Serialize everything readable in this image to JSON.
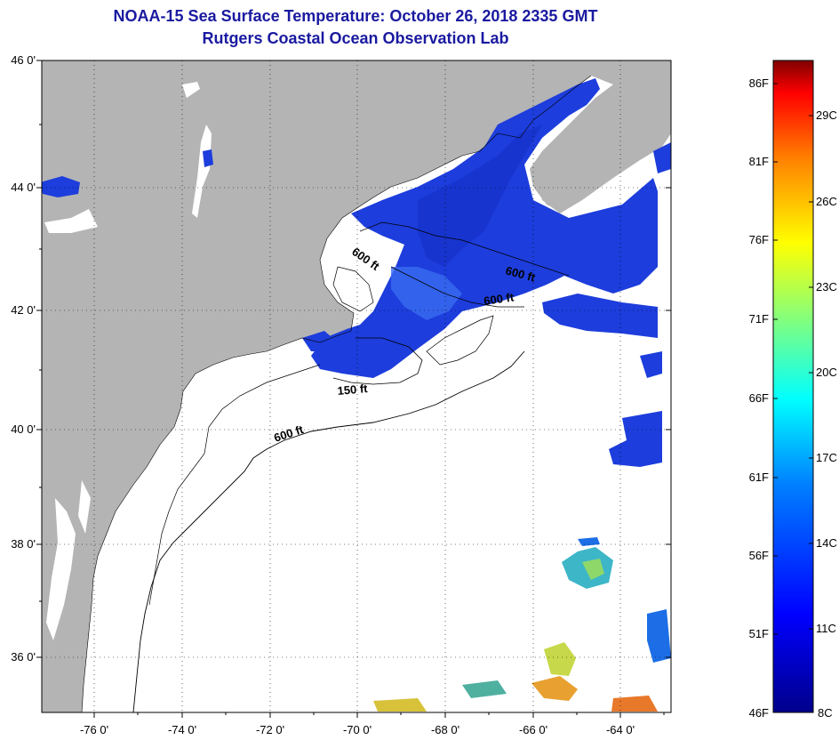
{
  "title": "NOAA-15 Sea Surface Temperature:  October 26, 2018 2335 GMT",
  "subtitle": "Rutgers Coastal Ocean Observation Lab",
  "colors": {
    "land": "#b4b4b4",
    "ocean": "#ffffff",
    "title": "#1a1aa0",
    "sst_cool": "#1f3fe0"
  },
  "axes": {
    "lat_ticks": [
      "46 0'",
      "44 0'",
      "42 0'",
      "40 0'",
      "38 0'",
      "36 0'"
    ],
    "lon_ticks": [
      "-76 0'",
      "-74 0'",
      "-72 0'",
      "-70 0'",
      "-68 0'",
      "-66 0'",
      "-64 0'"
    ]
  },
  "contours": {
    "labels": [
      "600 ft",
      "600 ft",
      "600 ft",
      "150 ft",
      "600 ft"
    ]
  },
  "colorbar": {
    "fahrenheit": [
      "86F",
      "81F",
      "76F",
      "71F",
      "66F",
      "61F",
      "56F",
      "51F",
      "46F"
    ],
    "celsius": [
      "29C",
      "26C",
      "23C",
      "20C",
      "17C",
      "14C",
      "11C",
      "8C"
    ]
  }
}
